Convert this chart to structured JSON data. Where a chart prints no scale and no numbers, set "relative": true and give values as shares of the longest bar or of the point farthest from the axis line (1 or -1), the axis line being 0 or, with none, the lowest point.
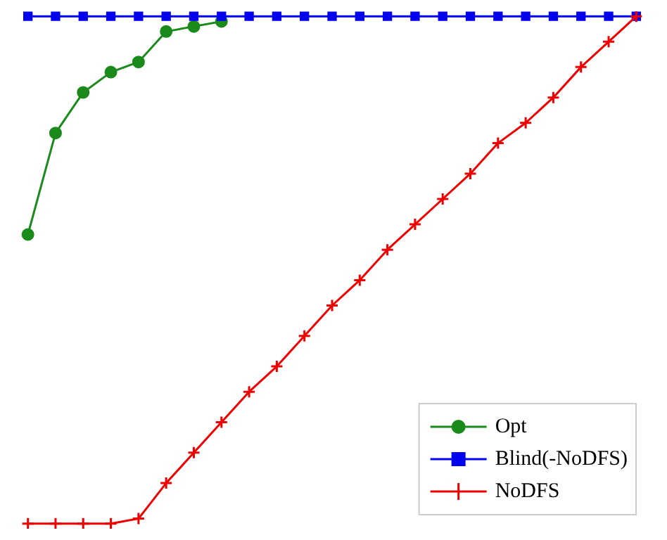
{
  "chart_data": {
    "type": "line",
    "relative": true,
    "categories": [
      null,
      null,
      null,
      null,
      null,
      null,
      null,
      null,
      null,
      null,
      null,
      null,
      null,
      null,
      null,
      null,
      null,
      null,
      null,
      null,
      null,
      null,
      null
    ],
    "legend": "bottom right",
    "series": [
      {
        "name": "Opt",
        "color": "#1a8a1a",
        "marker": "circle",
        "values": [
          0.57,
          0.77,
          0.85,
          0.89,
          0.91,
          0.97,
          0.98,
          0.99,
          null,
          null,
          null,
          null,
          null,
          null,
          null,
          null,
          null,
          null,
          null,
          null,
          null,
          null,
          null
        ]
      },
      {
        "name": "Blind(-NoDFS)",
        "color": "#0000ee",
        "marker": "square",
        "values": [
          1,
          1,
          1,
          1,
          1,
          1,
          1,
          1,
          1,
          1,
          1,
          1,
          1,
          1,
          1,
          1,
          1,
          1,
          1,
          1,
          1,
          1,
          1
        ]
      },
      {
        "name": "NoDFS",
        "color": "#ee0000",
        "marker": "cross",
        "values": [
          0,
          0,
          0,
          0,
          0.01,
          0.08,
          0.14,
          0.2,
          0.26,
          0.31,
          0.37,
          0.43,
          0.48,
          0.54,
          0.59,
          0.64,
          0.69,
          0.75,
          0.79,
          0.84,
          0.9,
          0.95,
          1
        ]
      }
    ]
  }
}
